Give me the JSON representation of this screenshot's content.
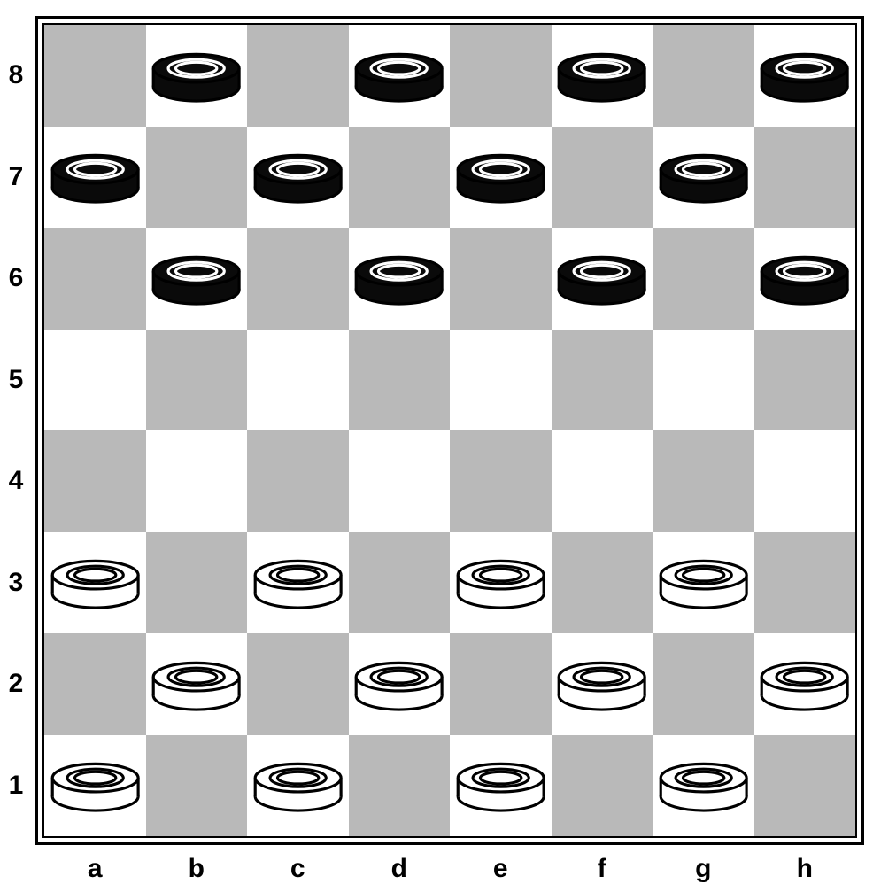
{
  "board": {
    "type": "checkers-board",
    "size": 8,
    "dark_square_color": "#b9b9b9",
    "light_square_color": "#ffffff",
    "outer_border_color": "#000000",
    "inner_border_color": "#000000",
    "files": [
      "a",
      "b",
      "c",
      "d",
      "e",
      "f",
      "g",
      "h"
    ],
    "ranks": [
      "8",
      "7",
      "6",
      "5",
      "4",
      "3",
      "2",
      "1"
    ],
    "label_color": "#000000",
    "label_fontsize_pt": 22,
    "label_fontweight": "700",
    "pieces": [
      {
        "square": "b8",
        "color": "black"
      },
      {
        "square": "d8",
        "color": "black"
      },
      {
        "square": "f8",
        "color": "black"
      },
      {
        "square": "h8",
        "color": "black"
      },
      {
        "square": "a7",
        "color": "black"
      },
      {
        "square": "c7",
        "color": "black"
      },
      {
        "square": "e7",
        "color": "black"
      },
      {
        "square": "g7",
        "color": "black"
      },
      {
        "square": "b6",
        "color": "black"
      },
      {
        "square": "d6",
        "color": "black"
      },
      {
        "square": "f6",
        "color": "black"
      },
      {
        "square": "h6",
        "color": "black"
      },
      {
        "square": "a3",
        "color": "white"
      },
      {
        "square": "c3",
        "color": "white"
      },
      {
        "square": "e3",
        "color": "white"
      },
      {
        "square": "g3",
        "color": "white"
      },
      {
        "square": "b2",
        "color": "white"
      },
      {
        "square": "d2",
        "color": "white"
      },
      {
        "square": "f2",
        "color": "white"
      },
      {
        "square": "h2",
        "color": "white"
      },
      {
        "square": "a1",
        "color": "white"
      },
      {
        "square": "c1",
        "color": "white"
      },
      {
        "square": "e1",
        "color": "white"
      },
      {
        "square": "g1",
        "color": "white"
      }
    ],
    "piece_style": {
      "black": {
        "body_fill": "#0a0a0a",
        "top_fill": "#0a0a0a",
        "ring_stroke": "#ffffff",
        "outline": "#000000"
      },
      "white": {
        "body_fill": "#ffffff",
        "top_fill": "#ffffff",
        "ring_stroke": "#000000",
        "outline": "#000000"
      }
    }
  }
}
